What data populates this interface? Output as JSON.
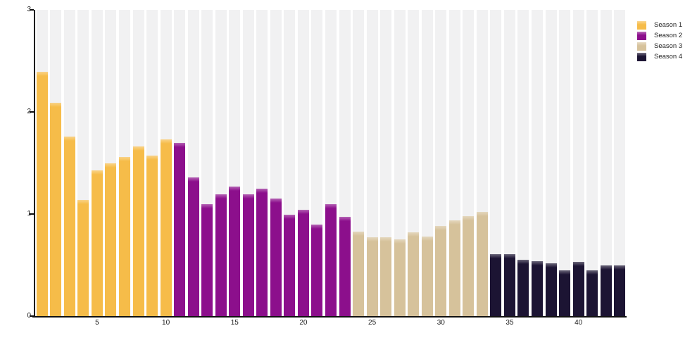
{
  "chart_data": {
    "type": "bar",
    "title": "",
    "xlabel": "",
    "ylabel": "",
    "ylim": [
      0,
      3
    ],
    "y_ticks": [
      0,
      1,
      2,
      3
    ],
    "x_ticks": [
      5,
      10,
      15,
      20,
      25,
      30,
      35,
      40
    ],
    "x_range": [
      1,
      43
    ],
    "grid": "off",
    "background_bands": true,
    "legend_position": "top-right-outside",
    "series": [
      {
        "name": "Season 1",
        "color": "#F6BC49",
        "start": 1,
        "values": [
          2.39,
          2.09,
          1.76,
          1.14,
          1.43,
          1.5,
          1.56,
          1.66,
          1.57,
          1.73
        ]
      },
      {
        "name": "Season 2",
        "color": "#8C0F8C",
        "start": 11,
        "values": [
          1.7,
          1.36,
          1.1,
          1.19,
          1.27,
          1.19,
          1.25,
          1.15,
          0.99,
          1.04,
          0.9,
          1.1,
          0.97
        ]
      },
      {
        "name": "Season 3",
        "color": "#D6C29B",
        "start": 24,
        "values": [
          0.83,
          0.77,
          0.77,
          0.75,
          0.82,
          0.78,
          0.88,
          0.94,
          0.98,
          1.02
        ]
      },
      {
        "name": "Season 4",
        "color": "#1C1433",
        "start": 34,
        "values": [
          0.61,
          0.61,
          0.55,
          0.54,
          0.52,
          0.45,
          0.53,
          0.45,
          0.5,
          0.5
        ]
      }
    ]
  },
  "colors": {
    "band": "#F1F1F2",
    "axis": "#111111",
    "tick_text": "#1a1a1a",
    "background": "#FFFFFF"
  },
  "legend": {
    "entries": [
      "Season 1",
      "Season 2",
      "Season 3",
      "Season 4"
    ]
  }
}
